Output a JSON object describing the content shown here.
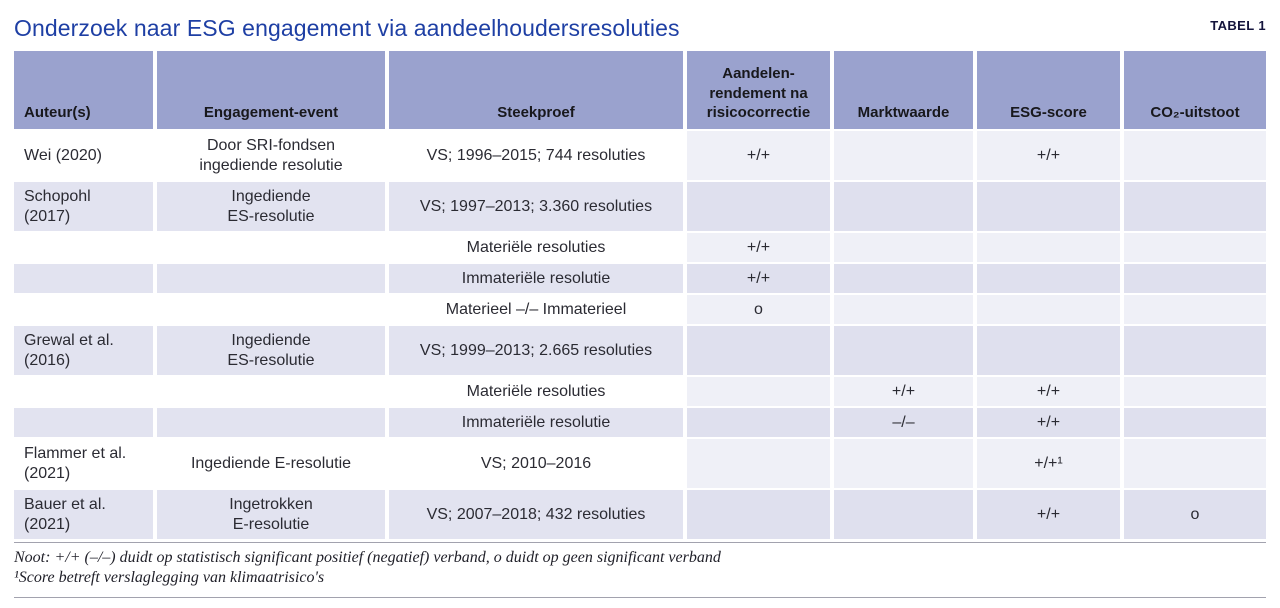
{
  "page": {
    "title": "Onderzoek naar ESG engagement via aandeelhoudersresoluties",
    "table_label": "TABEL 1"
  },
  "colors": {
    "title_blue": "#1e3fa4",
    "header_bg": "#9aa2ce",
    "row_alt_bg": "#e2e3f0",
    "row_result_light_bg": "#eff0f7",
    "row_result_dark_bg": "#dfe0ee"
  },
  "table": {
    "columns": [
      {
        "key": "auteur",
        "label": "Auteur(s)"
      },
      {
        "key": "event",
        "label": "Engagement-event"
      },
      {
        "key": "steekproef",
        "label": "Steekproef"
      },
      {
        "key": "rendement",
        "label": "Aandelen-\nrendement na\nrisicocorrectie"
      },
      {
        "key": "marktwaarde",
        "label": "Marktwaarde"
      },
      {
        "key": "esg",
        "label": "ESG-score"
      },
      {
        "key": "co2",
        "label": "CO₂-uitstoot"
      }
    ],
    "rows": [
      {
        "type": "author",
        "cells": [
          "Wei (2020)",
          "Door SRI-fondsen\ningediende resolutie",
          "VS; 1996–2015; 744 resoluties",
          "+/+",
          "",
          "+/+",
          ""
        ]
      },
      {
        "type": "author",
        "cells": [
          "Schopohl\n(2017)",
          "Ingediende\nES-resolutie",
          "VS; 1997–2013; 3.360 resoluties",
          "",
          "",
          "",
          ""
        ]
      },
      {
        "type": "sub",
        "cells": [
          "",
          "",
          "Materiële resoluties",
          "+/+",
          "",
          "",
          ""
        ]
      },
      {
        "type": "sub",
        "cells": [
          "",
          "",
          "Immateriële resolutie",
          "+/+",
          "",
          "",
          ""
        ]
      },
      {
        "type": "sub",
        "cells": [
          "",
          "",
          "Materieel –/– Immaterieel",
          "o",
          "",
          "",
          ""
        ]
      },
      {
        "type": "author",
        "cells": [
          "Grewal et al.\n(2016)",
          "Ingediende\nES-resolutie",
          "VS; 1999–2013; 2.665 resoluties",
          "",
          "",
          "",
          ""
        ]
      },
      {
        "type": "sub",
        "cells": [
          "",
          "",
          "Materiële resoluties",
          "",
          "+/+",
          "+/+",
          ""
        ]
      },
      {
        "type": "sub",
        "cells": [
          "",
          "",
          "Immateriële resolutie",
          "",
          "–/–",
          "+/+",
          ""
        ]
      },
      {
        "type": "author",
        "cells": [
          "Flammer et al.\n(2021)",
          "Ingediende E-resolutie",
          "VS; 2010–2016",
          "",
          "",
          "+/+¹",
          ""
        ]
      },
      {
        "type": "author",
        "cells": [
          "Bauer et al.\n(2021)",
          "Ingetrokken\nE-resolutie",
          "VS; 2007–2018; 432 resoluties",
          "",
          "",
          "+/+",
          "o"
        ]
      }
    ]
  },
  "footnotes": [
    "Noot: +/+ (–/–) duidt op statistisch significant positief (negatief) verband, o duidt op geen significant verband",
    "¹Score betreft verslaglegging van klimaatrisico's"
  ]
}
